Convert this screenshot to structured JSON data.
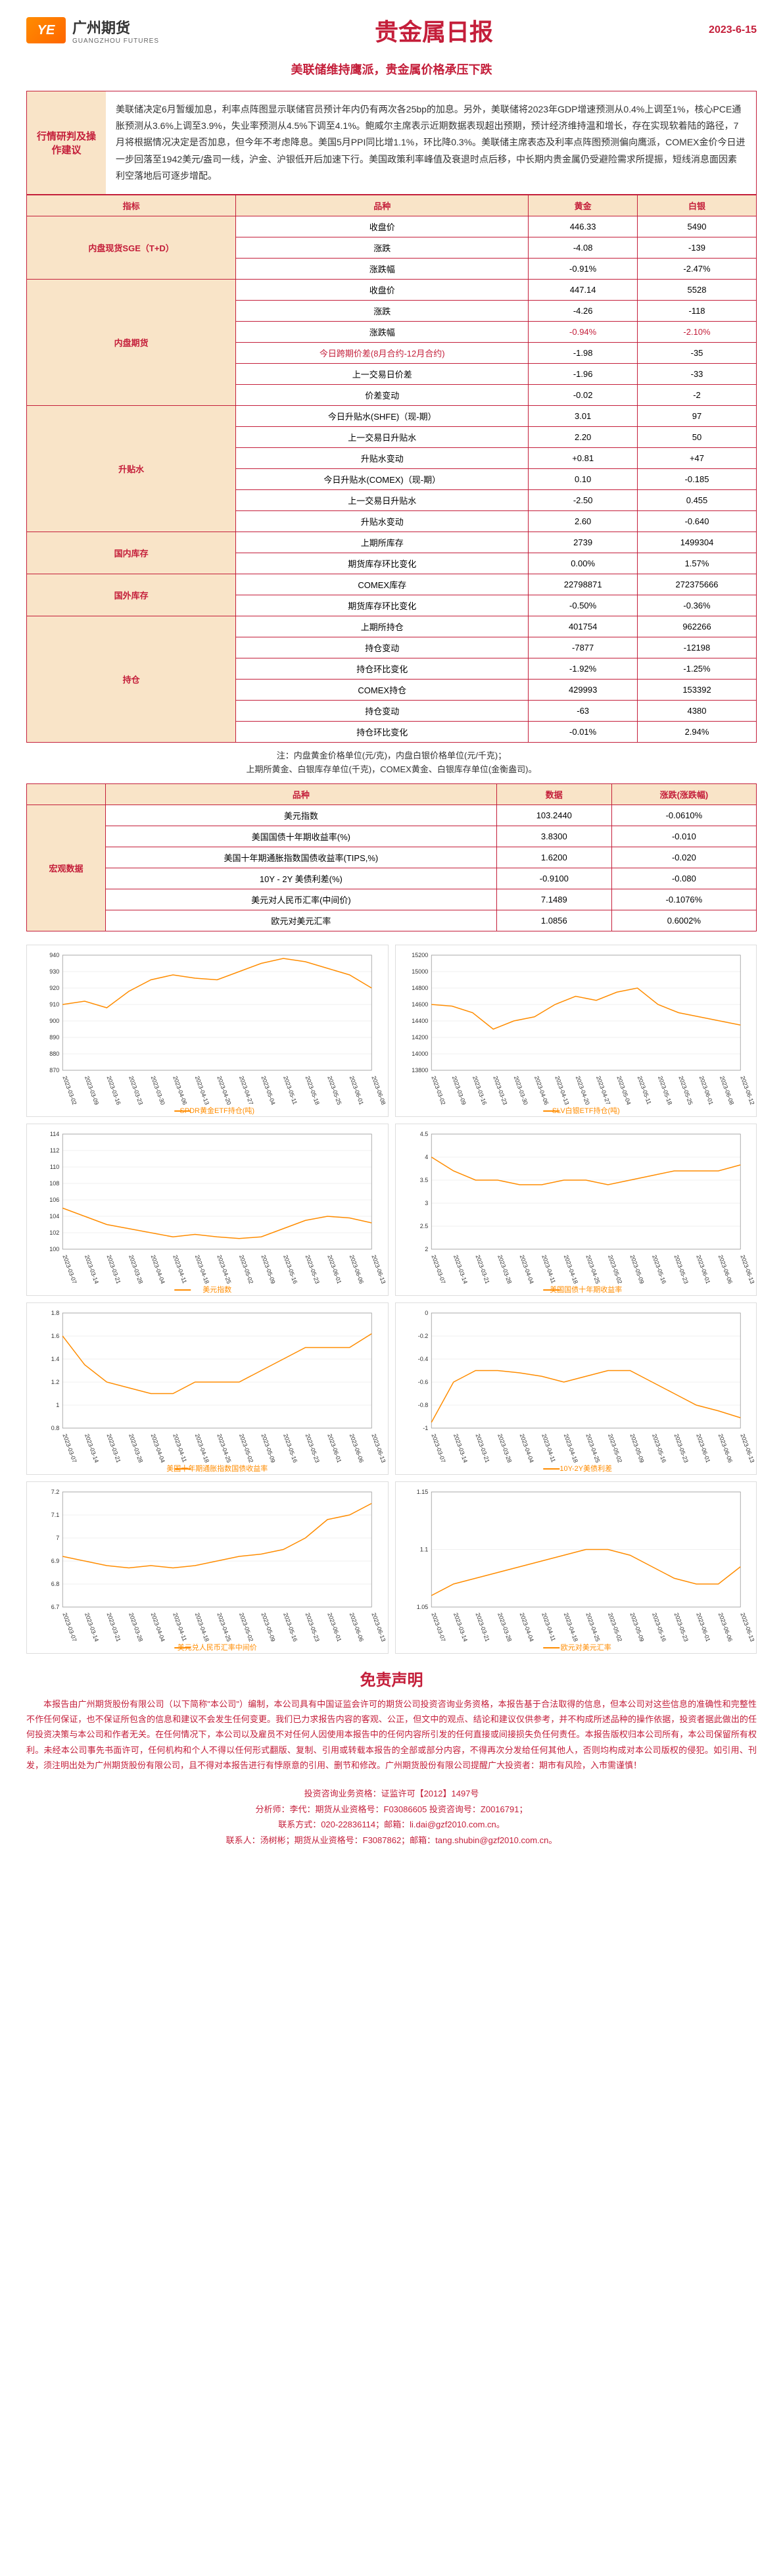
{
  "header": {
    "logo_cn": "广州期货",
    "logo_en": "GUANGZHOU FUTURES",
    "logo_mark": "YE",
    "title": "贵金属日报",
    "date": "2023-6-15",
    "subtitle": "美联储维持鹰派，贵金属价格承压下跌"
  },
  "analysis": {
    "label": "行情研判及操作建议",
    "content": "美联储决定6月暂缓加息，利率点阵图显示联储官员预计年内仍有两次各25bp的加息。另外，美联储将2023年GDP增速预测从0.4%上调至1%，核心PCE通胀预测从3.6%上调至3.9%，失业率预测从4.5%下调至4.1%。鲍威尔主席表示近期数据表现超出预期，预计经济维持温和增长，存在实现软着陆的路径，7月将根据情况决定是否加息，但今年不考虑降息。美国5月PPI同比增1.1%，环比降0.3%。美联储主席表态及利率点阵图预测偏向鹰派，COMEX金价今日进一步回落至1942美元/盎司一线，沪金、沪银低开后加速下行。美国政策利率峰值及衰退时点后移，中长期内贵金属仍受避险需求所提振，短线消息面因素利空落地后可逐步增配。"
  },
  "table_headers": {
    "col1": "指标",
    "col2": "品种",
    "col3": "黄金",
    "col4": "白银"
  },
  "table_data": [
    {
      "cat": "内盘现货SGE（T+D）",
      "rows": [
        {
          "label": "收盘价",
          "gold": "446.33",
          "silver": "5490"
        },
        {
          "label": "涨跌",
          "gold": "-4.08",
          "silver": "-139"
        },
        {
          "label": "涨跌幅",
          "gold": "-0.91%",
          "silver": "-2.47%"
        }
      ]
    },
    {
      "cat": "内盘期货",
      "rows": [
        {
          "label": "收盘价",
          "gold": "447.14",
          "silver": "5528"
        },
        {
          "label": "涨跌",
          "gold": "-4.26",
          "silver": "-118"
        },
        {
          "label": "涨跌幅",
          "gold": "-0.94%",
          "silver": "-2.10%",
          "red": true
        },
        {
          "label": "今日跨期价差(8月合约-12月合约)",
          "gold": "-1.98",
          "silver": "-35",
          "redlabel": true
        },
        {
          "label": "上一交易日价差",
          "gold": "-1.96",
          "silver": "-33"
        },
        {
          "label": "价差变动",
          "gold": "-0.02",
          "silver": "-2"
        }
      ]
    },
    {
      "cat": "升贴水",
      "rows": [
        {
          "label": "今日升贴水(SHFE)（现-期）",
          "gold": "3.01",
          "silver": "97"
        },
        {
          "label": "上一交易日升贴水",
          "gold": "2.20",
          "silver": "50"
        },
        {
          "label": "升贴水变动",
          "gold": "+0.81",
          "silver": "+47"
        },
        {
          "label": "今日升贴水(COMEX)（现-期）",
          "gold": "0.10",
          "silver": "-0.185"
        },
        {
          "label": "上一交易日升贴水",
          "gold": "-2.50",
          "silver": "0.455"
        },
        {
          "label": "升贴水变动",
          "gold": "2.60",
          "silver": "-0.640"
        }
      ]
    },
    {
      "cat": "国内库存",
      "rows": [
        {
          "label": "上期所库存",
          "gold": "2739",
          "silver": "1499304"
        },
        {
          "label": "期货库存环比变化",
          "gold": "0.00%",
          "silver": "1.57%"
        }
      ]
    },
    {
      "cat": "国外库存",
      "rows": [
        {
          "label": "COMEX库存",
          "gold": "22798871",
          "silver": "272375666"
        },
        {
          "label": "期货库存环比变化",
          "gold": "-0.50%",
          "silver": "-0.36%"
        }
      ]
    },
    {
      "cat": "持仓",
      "rows": [
        {
          "label": "上期所持仓",
          "gold": "401754",
          "silver": "962266"
        },
        {
          "label": "持仓变动",
          "gold": "-7877",
          "silver": "-12198"
        },
        {
          "label": "持仓环比变化",
          "gold": "-1.92%",
          "silver": "-1.25%"
        },
        {
          "label": "COMEX持仓",
          "gold": "429993",
          "silver": "153392"
        },
        {
          "label": "持仓变动",
          "gold": "-63",
          "silver": "4380"
        },
        {
          "label": "持仓环比变化",
          "gold": "-0.01%",
          "silver": "2.94%"
        }
      ]
    }
  ],
  "note": "注：内盘黄金价格单位(元/克)，内盘白银价格单位(元/千克)；\n上期所黄金、白银库存单位(千克)，COMEX黄金、白银库存单位(金衡盎司)。",
  "macro_headers": {
    "col1": "",
    "col2": "品种",
    "col3": "数据",
    "col4": "涨跌(涨跌幅)"
  },
  "macro_label": "宏观数据",
  "macro_data": [
    {
      "label": "美元指数",
      "val": "103.2440",
      "chg": "-0.0610%"
    },
    {
      "label": "美国国债十年期收益率(%)",
      "val": "3.8300",
      "chg": "-0.010"
    },
    {
      "label": "美国十年期通胀指数国债收益率(TIPS,%)",
      "val": "1.6200",
      "chg": "-0.020"
    },
    {
      "label": "10Y - 2Y 美债利差(%)",
      "val": "-0.9100",
      "chg": "-0.080"
    },
    {
      "label": "美元对人民币汇率(中间价)",
      "val": "7.1489",
      "chg": "-0.1076%"
    },
    {
      "label": "欧元对美元汇率",
      "val": "1.0856",
      "chg": "0.6002%"
    }
  ],
  "charts": [
    {
      "label": "SPDR黄金ETF持仓(吨)",
      "ylim": [
        870,
        940
      ],
      "yticks": [
        870,
        880,
        890,
        900,
        910,
        920,
        930,
        940
      ],
      "xdates": [
        "2023-03-02",
        "2023-03-09",
        "2023-03-16",
        "2023-03-23",
        "2023-03-30",
        "2023-04-06",
        "2023-04-13",
        "2023-04-20",
        "2023-04-27",
        "2023-05-04",
        "2023-05-11",
        "2023-05-18",
        "2023-05-25",
        "2023-06-01",
        "2023-06-08"
      ],
      "values": [
        910,
        912,
        908,
        918,
        925,
        928,
        926,
        925,
        930,
        935,
        938,
        936,
        932,
        928,
        920
      ],
      "color": "#ff8c00"
    },
    {
      "label": "SLV白银ETF持仓(吨)",
      "ylim": [
        13800,
        15200
      ],
      "yticks": [
        13800,
        14000,
        14200,
        14400,
        14600,
        14800,
        15000,
        15200
      ],
      "xdates": [
        "2023-03-02",
        "2023-03-09",
        "2023-03-16",
        "2023-03-23",
        "2023-03-30",
        "2023-04-06",
        "2023-04-13",
        "2023-04-20",
        "2023-04-27",
        "2023-05-04",
        "2023-05-11",
        "2023-05-18",
        "2023-05-25",
        "2023-06-01",
        "2023-06-08",
        "2023-06-12"
      ],
      "values": [
        14600,
        14580,
        14500,
        14300,
        14400,
        14450,
        14600,
        14700,
        14650,
        14750,
        14800,
        14600,
        14500,
        14450,
        14400,
        14350
      ],
      "color": "#ff8c00"
    },
    {
      "label": "美元指数",
      "ylim": [
        100,
        114
      ],
      "yticks": [
        100,
        102,
        104,
        106,
        108,
        110,
        112,
        114
      ],
      "xdates": [
        "2023-03-07",
        "2023-03-14",
        "2023-03-21",
        "2023-03-28",
        "2023-04-04",
        "2023-04-11",
        "2023-04-18",
        "2023-04-25",
        "2023-05-02",
        "2023-05-09",
        "2023-05-16",
        "2023-05-23",
        "2023-06-01",
        "2023-06-06",
        "2023-06-13"
      ],
      "values": [
        105,
        104,
        103,
        102.5,
        102,
        101.5,
        101.8,
        101.5,
        101.3,
        101.5,
        102.5,
        103.5,
        104,
        103.8,
        103.2
      ],
      "color": "#ff8c00"
    },
    {
      "label": "美国国债十年期收益率",
      "ylim": [
        2.0,
        4.5
      ],
      "yticks": [
        2.0,
        2.5,
        3.0,
        3.5,
        4.0,
        4.5
      ],
      "xdates": [
        "2023-03-07",
        "2023-03-14",
        "2023-03-21",
        "2023-03-28",
        "2023-04-04",
        "2023-04-11",
        "2023-04-18",
        "2023-04-25",
        "2023-05-02",
        "2023-05-09",
        "2023-05-16",
        "2023-05-23",
        "2023-06-01",
        "2023-06-06",
        "2023-06-13"
      ],
      "values": [
        4.0,
        3.7,
        3.5,
        3.5,
        3.4,
        3.4,
        3.5,
        3.5,
        3.4,
        3.5,
        3.6,
        3.7,
        3.7,
        3.7,
        3.83
      ],
      "color": "#ff8c00"
    },
    {
      "label": "美国十年期通胀指数国债收益率",
      "ylim": [
        0.8,
        1.8
      ],
      "yticks": [
        0.8,
        1.0,
        1.2,
        1.4,
        1.6,
        1.8
      ],
      "xdates": [
        "2023-03-07",
        "2023-03-14",
        "2023-03-21",
        "2023-03-28",
        "2023-04-04",
        "2023-04-11",
        "2023-04-18",
        "2023-04-25",
        "2023-05-02",
        "2023-05-09",
        "2023-05-16",
        "2023-05-23",
        "2023-06-01",
        "2023-06-06",
        "2023-06-13"
      ],
      "values": [
        1.6,
        1.35,
        1.2,
        1.15,
        1.1,
        1.1,
        1.2,
        1.2,
        1.2,
        1.3,
        1.4,
        1.5,
        1.5,
        1.5,
        1.62
      ],
      "color": "#ff8c00"
    },
    {
      "label": "10Y-2Y美债利差",
      "ylim": [
        -1.0,
        0.0
      ],
      "yticks": [
        -1.0,
        -0.8,
        -0.6,
        -0.4,
        -0.2,
        0.0
      ],
      "xdates": [
        "2023-03-07",
        "2023-03-14",
        "2023-03-21",
        "2023-03-28",
        "2023-04-04",
        "2023-04-11",
        "2023-04-18",
        "2023-04-25",
        "2023-05-02",
        "2023-05-09",
        "2023-05-16",
        "2023-05-23",
        "2023-06-01",
        "2023-06-06",
        "2023-06-13"
      ],
      "values": [
        -0.95,
        -0.6,
        -0.5,
        -0.5,
        -0.52,
        -0.55,
        -0.6,
        -0.55,
        -0.5,
        -0.5,
        -0.6,
        -0.7,
        -0.8,
        -0.85,
        -0.91
      ],
      "color": "#ff8c00"
    },
    {
      "label": "美元兑人民币汇率中间价",
      "ylim": [
        6.7,
        7.2
      ],
      "yticks": [
        6.7,
        6.8,
        6.9,
        7.0,
        7.1,
        7.2
      ],
      "xdates": [
        "2023-03-07",
        "2023-03-14",
        "2023-03-21",
        "2023-03-28",
        "2023-04-04",
        "2023-04-11",
        "2023-04-18",
        "2023-04-25",
        "2023-05-02",
        "2023-05-09",
        "2023-05-16",
        "2023-05-23",
        "2023-06-01",
        "2023-06-06",
        "2023-06-13"
      ],
      "values": [
        6.92,
        6.9,
        6.88,
        6.87,
        6.88,
        6.87,
        6.88,
        6.9,
        6.92,
        6.93,
        6.95,
        7.0,
        7.08,
        7.1,
        7.15
      ],
      "color": "#ff8c00"
    },
    {
      "label": "欧元对美元汇率",
      "ylim": [
        1.05,
        1.15
      ],
      "yticks": [
        1.05,
        1.1,
        1.15
      ],
      "xdates": [
        "2023-03-07",
        "2023-03-14",
        "2023-03-21",
        "2023-03-28",
        "2023-04-04",
        "2023-04-11",
        "2023-04-18",
        "2023-04-25",
        "2023-05-02",
        "2023-05-09",
        "2023-05-16",
        "2023-05-23",
        "2023-06-01",
        "2023-06-06",
        "2023-06-13"
      ],
      "values": [
        1.06,
        1.07,
        1.075,
        1.08,
        1.085,
        1.09,
        1.095,
        1.1,
        1.1,
        1.095,
        1.085,
        1.075,
        1.07,
        1.07,
        1.085
      ],
      "color": "#ff8c00"
    }
  ],
  "disclaimer": {
    "title": "免责声明",
    "text": "本报告由广州期货股份有限公司（以下简称\"本公司\"）编制，本公司具有中国证监会许可的期货公司投资咨询业务资格，本报告基于合法取得的信息，但本公司对这些信息的准确性和完整性不作任何保证，也不保证所包含的信息和建议不会发生任何变更。我们已力求报告内容的客观、公正，但文中的观点、结论和建议仅供参考，并不构成所述品种的操作依据，投资者据此做出的任何投资决策与本公司和作者无关。在任何情况下，本公司以及雇员不对任何人因使用本报告中的任何内容所引发的任何直接或间接损失负任何责任。本报告版权归本公司所有，本公司保留所有权利。未经本公司事先书面许可，任何机构和个人不得以任何形式翻版、复制、引用或转载本报告的全部或部分内容，不得再次分发给任何其他人，否则均构成对本公司版权的侵犯。如引用、刊发，须注明出处为广州期货股份有限公司，且不得对本报告进行有悖原意的引用、删节和修改。广州期货股份有限公司提醒广大投资者：期市有风险，入市需谨慎！"
  },
  "footer": {
    "line1": "投资咨询业务资格：证监许可【2012】1497号",
    "line2a": "分析师：李代：期货从业资格号：F03086605  投资咨询号：Z0016791；",
    "line2b": "联系方式：020-22836114；邮箱：li.dai@gzf2010.com.cn。",
    "line3a": "联系人：汤树彬；期货从业资格号：F3087862；邮箱：tang.shubin@gzf2010.com.cn。"
  },
  "colors": {
    "primary": "#c41e3a",
    "accent": "#ff8c00",
    "cell_bg": "#f9e4c8",
    "grid": "#e0e0e0"
  }
}
